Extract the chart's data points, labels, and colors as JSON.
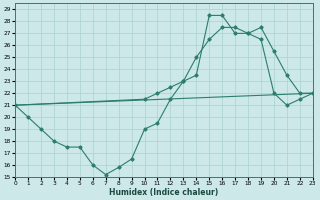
{
  "xlabel": "Humidex (Indice chaleur)",
  "bg_color": "#cce8e8",
  "grid_color": "#b0d4d4",
  "line_color": "#2d7d6e",
  "xlim": [
    0,
    23
  ],
  "ylim": [
    15,
    29.5
  ],
  "xticks": [
    0,
    1,
    2,
    3,
    4,
    5,
    6,
    7,
    8,
    9,
    10,
    11,
    12,
    13,
    14,
    15,
    16,
    17,
    18,
    19,
    20,
    21,
    22,
    23
  ],
  "yticks": [
    15,
    16,
    17,
    18,
    19,
    20,
    21,
    22,
    23,
    24,
    25,
    26,
    27,
    28,
    29
  ],
  "line1_x": [
    0,
    1,
    2,
    3,
    4,
    5,
    6,
    7,
    8,
    9,
    10,
    11,
    12,
    13,
    14,
    15,
    16,
    17,
    18,
    19,
    20,
    21,
    22,
    23
  ],
  "line1_y": [
    21,
    20,
    19,
    18,
    17.5,
    17.5,
    16,
    15.2,
    15.8,
    16.5,
    19,
    19.5,
    21.5,
    23.0,
    25.0,
    26.5,
    27.5,
    27.5,
    27.0,
    27.5,
    25.5,
    23.5,
    22.0,
    22.0
  ],
  "line2_x": [
    0,
    10,
    11,
    12,
    13,
    14,
    15,
    16,
    17,
    18,
    19,
    20,
    21,
    22,
    23
  ],
  "line2_y": [
    21,
    21.5,
    22.0,
    22.5,
    23.0,
    23.5,
    28.5,
    28.5,
    27.0,
    27.0,
    26.5,
    22.0,
    21.0,
    21.5,
    22.0
  ],
  "line3_x": [
    0,
    23
  ],
  "line3_y": [
    21,
    22
  ]
}
